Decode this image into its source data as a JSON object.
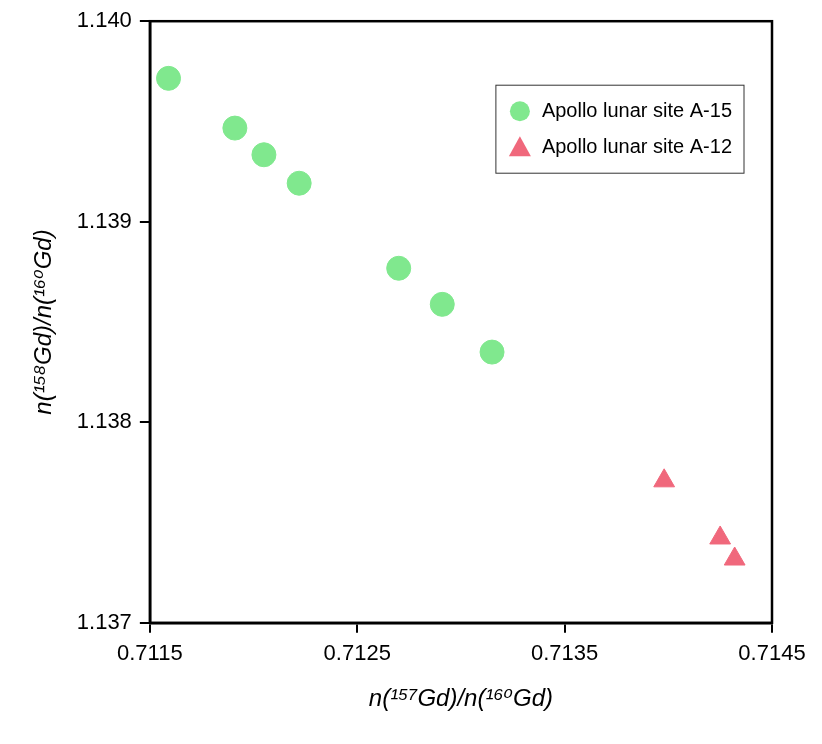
{
  "chart_data": {
    "type": "scatter",
    "x_label": "n(¹⁵⁷Gd)/n(¹⁶⁰Gd)",
    "y_label": "n(¹⁵⁸Gd)/n(¹⁶⁰Gd)",
    "series": [
      {
        "name": "Apollo lunar site A-15",
        "color": "#80e88e",
        "marker": "circle",
        "x": [
          0.71159,
          0.71191,
          0.71205,
          0.71222,
          0.7127,
          0.71291,
          0.71315
        ],
        "values": [
          1.139715,
          1.139467,
          1.139334,
          1.139192,
          1.138768,
          1.138588,
          1.13835
        ]
      },
      {
        "name": "Apollo lunar site A-12",
        "color": "#f0687c",
        "marker": "triangle",
        "x": [
          0.71398,
          0.71425,
          0.71432
        ],
        "values": [
          1.137708,
          1.137423,
          1.137318
        ]
      }
    ],
    "xlim": [
      0.7115,
      0.7145
    ],
    "xticks": [
      0.7115,
      0.7125,
      0.7135,
      0.7145
    ],
    "ylim": [
      1.137,
      1.14
    ],
    "yticks": [
      1.137,
      1.138,
      1.139,
      {
        "value": 1.14,
        "label": "1.140"
      }
    ],
    "grid": false,
    "legend": "upper right"
  }
}
